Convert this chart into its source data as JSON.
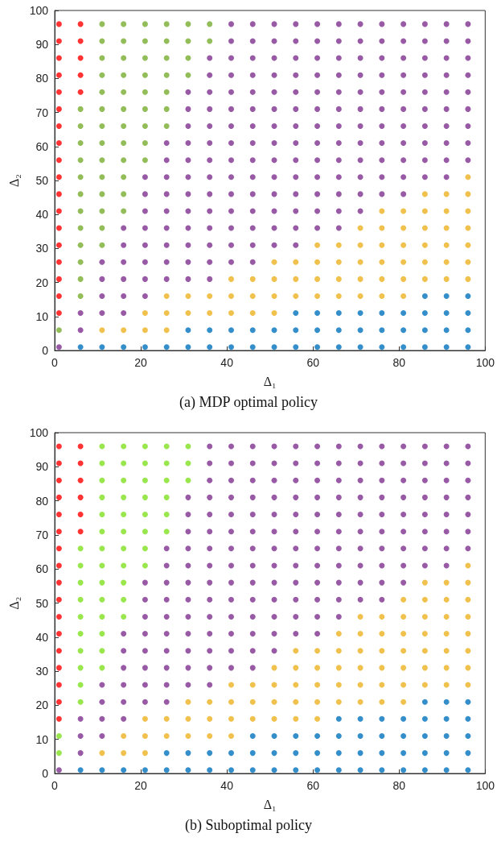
{
  "chart_data": [
    {
      "type": "scatter",
      "title": "(a) MDP optimal policy",
      "xlabel": "Δ₁",
      "ylabel": "Δ₂",
      "xlim": [
        0,
        100
      ],
      "ylim": [
        0,
        100
      ],
      "xticks": [
        0,
        20,
        40,
        60,
        80,
        100
      ],
      "yticks": [
        0,
        10,
        20,
        30,
        40,
        50,
        60,
        70,
        80,
        90,
        100
      ],
      "marker": "circle",
      "series": [
        {
          "color": "#ff0000",
          "x": [
            1,
            1,
            1,
            1,
            1,
            1,
            1,
            1,
            1,
            1,
            1,
            1,
            1,
            1,
            1,
            1,
            1,
            1,
            6,
            6,
            6,
            6,
            6
          ],
          "values": [
            11,
            16,
            21,
            26,
            31,
            36,
            41,
            46,
            51,
            56,
            61,
            66,
            71,
            76,
            81,
            86,
            91,
            96,
            76,
            81,
            86,
            91,
            96
          ]
        },
        {
          "color": "#77ac30",
          "x": [
            1,
            6,
            6,
            6,
            6,
            6,
            6,
            6,
            6,
            6,
            6,
            6,
            6,
            11,
            11,
            11,
            11,
            11,
            11,
            11,
            11,
            11,
            11,
            11,
            11,
            11,
            11,
            16,
            16,
            16,
            16,
            16,
            16,
            16,
            16,
            16,
            16,
            16,
            16,
            21,
            21,
            21,
            21,
            21,
            21,
            21,
            21,
            21,
            26,
            26,
            26,
            26,
            26,
            26,
            26,
            31,
            31,
            31,
            31,
            36,
            36
          ],
          "values": [
            6,
            16,
            21,
            26,
            31,
            36,
            41,
            46,
            51,
            56,
            61,
            66,
            71,
            31,
            36,
            41,
            46,
            51,
            56,
            61,
            66,
            71,
            76,
            81,
            86,
            91,
            96,
            41,
            46,
            51,
            56,
            61,
            66,
            71,
            76,
            81,
            86,
            91,
            96,
            56,
            61,
            66,
            71,
            76,
            81,
            86,
            91,
            96,
            66,
            71,
            76,
            81,
            86,
            91,
            96,
            81,
            86,
            91,
            96,
            91,
            96
          ]
        },
        {
          "color": "#7e2f8e",
          "x": [
            1,
            6,
            6,
            11,
            11,
            11,
            11,
            16,
            16,
            16,
            16,
            16,
            16,
            21,
            21,
            21,
            21,
            21,
            21,
            21,
            21,
            26,
            26,
            26,
            26,
            26,
            26,
            26,
            26,
            26,
            31,
            31,
            31,
            31,
            31,
            31,
            31,
            31,
            31,
            31,
            31,
            31,
            36,
            36,
            36,
            36,
            36,
            36,
            36,
            36,
            36,
            36,
            36,
            36,
            36,
            36,
            41,
            41,
            41,
            41,
            41,
            41,
            41,
            41,
            41,
            41,
            41,
            41,
            41,
            41,
            41,
            46,
            46,
            46,
            46,
            46,
            46,
            46,
            46,
            46,
            46,
            46,
            46,
            46,
            46,
            46,
            51,
            51,
            51,
            51,
            51,
            51,
            51,
            51,
            51,
            51,
            51,
            51,
            51,
            51,
            56,
            56,
            56,
            56,
            56,
            56,
            56,
            56,
            56,
            56,
            56,
            56,
            56,
            56,
            61,
            61,
            61,
            61,
            61,
            61,
            61,
            61,
            61,
            61,
            61,
            61,
            61,
            66,
            66,
            66,
            66,
            66,
            66,
            66,
            66,
            66,
            66,
            66,
            66,
            66,
            71,
            71,
            71,
            71,
            71,
            71,
            71,
            71,
            71,
            71,
            71,
            71,
            76,
            76,
            76,
            76,
            76,
            76,
            76,
            76,
            76,
            76,
            76,
            81,
            81,
            81,
            81,
            81,
            81,
            81,
            81,
            81,
            81,
            81,
            86,
            86,
            86,
            86,
            86,
            86,
            86,
            86,
            86,
            86,
            91,
            91,
            91,
            91,
            91,
            91,
            91,
            91,
            91,
            91,
            96,
            96,
            96,
            96,
            96,
            96,
            96,
            96,
            96
          ],
          "values": [
            1,
            6,
            11,
            11,
            16,
            21,
            26,
            11,
            16,
            21,
            26,
            31,
            36,
            16,
            21,
            26,
            31,
            36,
            41,
            46,
            51,
            21,
            26,
            31,
            36,
            41,
            46,
            51,
            56,
            61,
            21,
            26,
            31,
            36,
            41,
            46,
            51,
            56,
            61,
            66,
            71,
            76,
            21,
            26,
            31,
            36,
            41,
            46,
            51,
            56,
            61,
            66,
            71,
            76,
            81,
            86,
            26,
            31,
            36,
            41,
            46,
            51,
            56,
            61,
            66,
            71,
            76,
            81,
            86,
            91,
            96,
            26,
            31,
            36,
            41,
            46,
            51,
            56,
            61,
            66,
            71,
            76,
            81,
            86,
            91,
            96,
            31,
            36,
            41,
            46,
            51,
            56,
            61,
            66,
            71,
            76,
            81,
            86,
            91,
            96,
            31,
            36,
            41,
            46,
            51,
            56,
            61,
            66,
            71,
            76,
            81,
            86,
            91,
            96,
            36,
            41,
            46,
            51,
            56,
            61,
            66,
            71,
            76,
            81,
            86,
            91,
            96,
            36,
            41,
            46,
            51,
            56,
            61,
            66,
            71,
            76,
            81,
            86,
            91,
            96,
            41,
            46,
            51,
            56,
            61,
            66,
            71,
            76,
            81,
            86,
            91,
            96,
            46,
            51,
            56,
            61,
            66,
            71,
            76,
            81,
            86,
            91,
            96,
            46,
            51,
            56,
            61,
            66,
            71,
            76,
            81,
            86,
            91,
            96,
            51,
            56,
            61,
            66,
            71,
            76,
            81,
            86,
            91,
            96,
            51,
            56,
            61,
            66,
            71,
            76,
            81,
            86,
            91,
            96,
            56,
            61,
            66,
            71,
            76,
            81,
            86,
            91,
            96
          ]
        },
        {
          "color": "#edb120",
          "x": [
            11,
            16,
            21,
            21,
            26,
            26,
            26,
            31,
            31,
            36,
            36,
            41,
            41,
            41,
            46,
            46,
            46,
            51,
            51,
            51,
            51,
            56,
            56,
            56,
            61,
            61,
            61,
            61,
            66,
            66,
            66,
            66,
            71,
            71,
            71,
            71,
            71,
            76,
            76,
            76,
            76,
            76,
            76,
            81,
            81,
            81,
            81,
            81,
            81,
            86,
            86,
            86,
            86,
            86,
            86,
            91,
            91,
            91,
            91,
            91,
            91,
            96,
            96,
            96,
            96,
            96,
            96,
            96
          ],
          "values": [
            6,
            6,
            6,
            11,
            6,
            11,
            16,
            11,
            16,
            11,
            16,
            11,
            16,
            21,
            11,
            16,
            21,
            11,
            16,
            21,
            26,
            16,
            21,
            26,
            16,
            21,
            26,
            31,
            16,
            21,
            26,
            31,
            16,
            21,
            26,
            31,
            36,
            16,
            21,
            26,
            31,
            36,
            41,
            16,
            21,
            26,
            31,
            36,
            41,
            21,
            26,
            31,
            36,
            41,
            46,
            21,
            26,
            31,
            36,
            41,
            46,
            21,
            26,
            31,
            36,
            41,
            46,
            51
          ]
        },
        {
          "color": "#0072bd",
          "x": [
            6,
            11,
            16,
            21,
            26,
            31,
            31,
            36,
            36,
            41,
            41,
            46,
            46,
            51,
            51,
            56,
            56,
            56,
            61,
            61,
            61,
            66,
            66,
            66,
            71,
            71,
            71,
            76,
            76,
            76,
            81,
            81,
            81,
            86,
            86,
            86,
            86,
            91,
            91,
            91,
            91,
            96,
            96,
            96,
            96
          ],
          "values": [
            1,
            1,
            1,
            1,
            1,
            1,
            6,
            1,
            6,
            1,
            6,
            1,
            6,
            1,
            6,
            1,
            6,
            11,
            1,
            6,
            11,
            1,
            6,
            11,
            1,
            6,
            11,
            1,
            6,
            11,
            1,
            6,
            11,
            1,
            6,
            11,
            16,
            1,
            6,
            11,
            16,
            1,
            6,
            11,
            16
          ]
        }
      ]
    },
    {
      "type": "scatter",
      "title": "(b) Suboptimal policy",
      "xlabel": "Δ₁",
      "ylabel": "Δ₂",
      "xlim": [
        0,
        100
      ],
      "ylim": [
        0,
        100
      ],
      "xticks": [
        0,
        20,
        40,
        60,
        80,
        100
      ],
      "yticks": [
        0,
        10,
        20,
        30,
        40,
        50,
        60,
        70,
        80,
        90,
        100
      ],
      "marker": "circle",
      "series": [
        {
          "color": "#ff0000",
          "x": [
            1,
            1,
            1,
            1,
            1,
            1,
            1,
            1,
            1,
            1,
            1,
            1,
            1,
            1,
            1,
            1,
            1,
            6,
            6,
            6,
            6,
            6,
            6
          ],
          "values": [
            16,
            21,
            26,
            31,
            36,
            41,
            46,
            51,
            56,
            61,
            66,
            71,
            76,
            81,
            86,
            91,
            96,
            71,
            76,
            81,
            86,
            91,
            96
          ]
        },
        {
          "color": "#7fe020",
          "x": [
            1,
            1,
            6,
            6,
            6,
            6,
            6,
            6,
            6,
            6,
            6,
            6,
            11,
            11,
            11,
            11,
            11,
            11,
            11,
            11,
            11,
            11,
            11,
            11,
            11,
            11,
            16,
            16,
            16,
            16,
            16,
            16,
            16,
            16,
            16,
            16,
            16,
            21,
            21,
            21,
            21,
            21,
            21,
            21,
            21,
            26,
            26,
            26,
            26,
            26,
            26,
            31,
            31,
            31
          ],
          "values": [
            6,
            11,
            21,
            26,
            31,
            36,
            41,
            46,
            51,
            56,
            61,
            66,
            31,
            36,
            41,
            46,
            51,
            56,
            61,
            66,
            71,
            76,
            81,
            86,
            91,
            96,
            46,
            51,
            56,
            61,
            66,
            71,
            76,
            81,
            86,
            91,
            96,
            61,
            66,
            71,
            76,
            81,
            86,
            91,
            96,
            71,
            76,
            81,
            86,
            91,
            96,
            86,
            91,
            96
          ]
        },
        {
          "color": "#7e2f8e",
          "x": [
            1,
            6,
            6,
            6,
            11,
            11,
            11,
            11,
            16,
            16,
            16,
            16,
            16,
            16,
            21,
            21,
            21,
            21,
            21,
            21,
            21,
            21,
            26,
            26,
            26,
            26,
            26,
            26,
            26,
            26,
            26,
            26,
            31,
            31,
            31,
            31,
            31,
            31,
            31,
            31,
            31,
            31,
            31,
            31,
            36,
            36,
            36,
            36,
            36,
            36,
            36,
            36,
            36,
            36,
            36,
            36,
            36,
            36,
            36,
            41,
            41,
            41,
            41,
            41,
            41,
            41,
            41,
            41,
            41,
            41,
            41,
            41,
            41,
            46,
            46,
            46,
            46,
            46,
            46,
            46,
            46,
            46,
            46,
            46,
            46,
            46,
            46,
            51,
            51,
            51,
            51,
            51,
            51,
            51,
            51,
            51,
            51,
            51,
            51,
            51,
            56,
            56,
            56,
            56,
            56,
            56,
            56,
            56,
            56,
            56,
            56,
            56,
            61,
            61,
            61,
            61,
            61,
            61,
            61,
            61,
            61,
            61,
            61,
            61,
            66,
            66,
            66,
            66,
            66,
            66,
            66,
            66,
            66,
            66,
            66,
            71,
            71,
            71,
            71,
            71,
            71,
            71,
            71,
            71,
            71,
            76,
            76,
            76,
            76,
            76,
            76,
            76,
            76,
            76,
            76,
            81,
            81,
            81,
            81,
            81,
            81,
            81,
            81,
            81,
            86,
            86,
            86,
            86,
            86,
            86,
            86,
            86,
            91,
            91,
            91,
            91,
            91,
            91,
            91,
            91,
            96,
            96,
            96,
            96,
            96,
            96,
            96
          ],
          "values": [
            1,
            6,
            11,
            16,
            11,
            16,
            21,
            26,
            16,
            21,
            26,
            31,
            36,
            41,
            21,
            26,
            31,
            36,
            41,
            46,
            51,
            56,
            21,
            26,
            31,
            36,
            41,
            46,
            51,
            56,
            61,
            66,
            26,
            31,
            36,
            41,
            46,
            51,
            56,
            61,
            66,
            71,
            76,
            81,
            26,
            31,
            36,
            41,
            46,
            51,
            56,
            61,
            66,
            71,
            76,
            81,
            86,
            91,
            96,
            31,
            36,
            41,
            46,
            51,
            56,
            61,
            66,
            71,
            76,
            81,
            86,
            91,
            96,
            31,
            36,
            41,
            46,
            51,
            56,
            61,
            66,
            71,
            76,
            81,
            86,
            91,
            96,
            36,
            41,
            46,
            51,
            56,
            61,
            66,
            71,
            76,
            81,
            86,
            91,
            96,
            41,
            46,
            51,
            56,
            61,
            66,
            71,
            76,
            81,
            86,
            91,
            96,
            41,
            46,
            51,
            56,
            61,
            66,
            71,
            76,
            81,
            86,
            91,
            96,
            46,
            51,
            56,
            61,
            66,
            71,
            76,
            81,
            86,
            91,
            96,
            51,
            56,
            61,
            66,
            71,
            76,
            81,
            86,
            91,
            96,
            51,
            56,
            61,
            66,
            71,
            76,
            81,
            86,
            91,
            96,
            56,
            61,
            66,
            71,
            76,
            81,
            86,
            91,
            96,
            61,
            66,
            71,
            76,
            81,
            86,
            91,
            96,
            61,
            66,
            71,
            76,
            81,
            86,
            91,
            96,
            66,
            71,
            76,
            81,
            86,
            91,
            96
          ]
        },
        {
          "color": "#edb120",
          "x": [
            11,
            16,
            16,
            21,
            21,
            21,
            26,
            26,
            31,
            31,
            31,
            36,
            36,
            36,
            41,
            41,
            41,
            41,
            46,
            46,
            46,
            51,
            51,
            51,
            51,
            56,
            56,
            56,
            56,
            56,
            61,
            61,
            61,
            61,
            61,
            66,
            66,
            66,
            66,
            66,
            71,
            71,
            71,
            71,
            71,
            71,
            76,
            76,
            76,
            76,
            76,
            76,
            81,
            81,
            81,
            81,
            81,
            81,
            81,
            86,
            86,
            86,
            86,
            86,
            86,
            86,
            91,
            91,
            91,
            91,
            91,
            91,
            91,
            96,
            96,
            96,
            96,
            96,
            96,
            96,
            96
          ],
          "values": [
            6,
            6,
            11,
            6,
            11,
            16,
            11,
            16,
            11,
            16,
            21,
            11,
            16,
            21,
            11,
            16,
            21,
            26,
            16,
            21,
            26,
            16,
            21,
            26,
            31,
            16,
            21,
            26,
            31,
            36,
            16,
            21,
            26,
            31,
            36,
            21,
            26,
            31,
            36,
            41,
            21,
            26,
            31,
            36,
            41,
            46,
            21,
            26,
            31,
            36,
            41,
            46,
            21,
            26,
            31,
            36,
            41,
            46,
            51,
            26,
            31,
            36,
            41,
            46,
            51,
            56,
            26,
            31,
            36,
            41,
            46,
            51,
            56,
            26,
            31,
            36,
            41,
            46,
            51,
            56,
            61
          ]
        },
        {
          "color": "#0072bd",
          "x": [
            6,
            11,
            16,
            21,
            26,
            26,
            31,
            31,
            36,
            36,
            41,
            41,
            46,
            46,
            46,
            51,
            51,
            51,
            56,
            56,
            56,
            61,
            61,
            61,
            66,
            66,
            66,
            66,
            71,
            71,
            71,
            71,
            76,
            76,
            76,
            76,
            81,
            81,
            81,
            81,
            86,
            86,
            86,
            86,
            86,
            91,
            91,
            91,
            91,
            91,
            96,
            96,
            96,
            96,
            96
          ],
          "values": [
            1,
            1,
            1,
            1,
            1,
            6,
            1,
            6,
            1,
            6,
            1,
            6,
            1,
            6,
            11,
            1,
            6,
            11,
            1,
            6,
            11,
            1,
            6,
            11,
            1,
            6,
            11,
            16,
            1,
            6,
            11,
            16,
            1,
            6,
            11,
            16,
            1,
            6,
            11,
            16,
            1,
            6,
            11,
            16,
            21,
            1,
            6,
            11,
            16,
            21,
            1,
            6,
            11,
            16,
            21
          ]
        }
      ]
    }
  ]
}
